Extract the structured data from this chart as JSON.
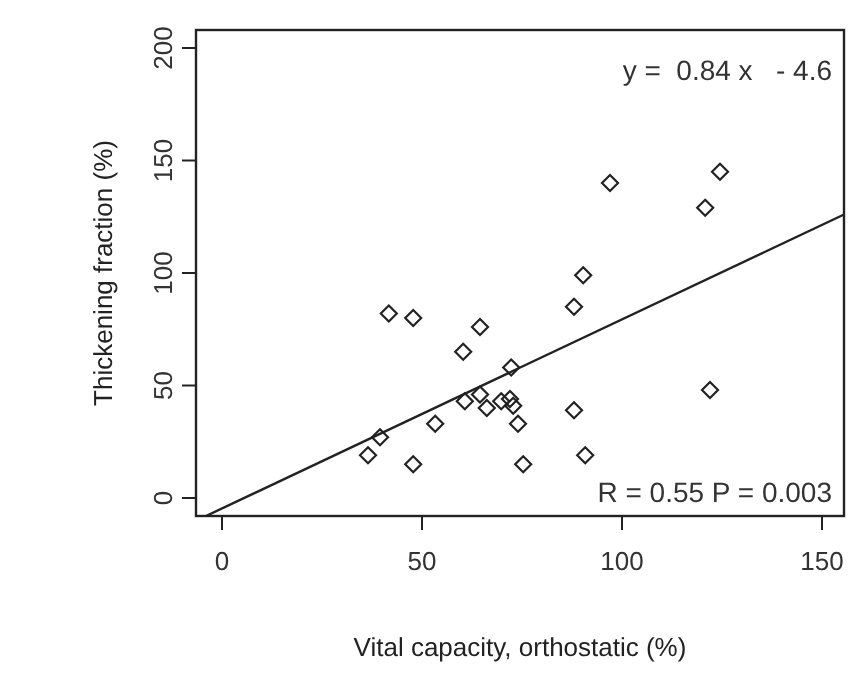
{
  "chart_data": {
    "type": "scatter",
    "xlabel": "Vital capacity, orthostatic  (%)",
    "ylabel": "Thickening fraction (%)",
    "xlim": [
      -6.5,
      155.5
    ],
    "ylim": [
      -8,
      208
    ],
    "xticks": [
      0,
      50,
      100,
      150
    ],
    "yticks": [
      0,
      50,
      100,
      150,
      200
    ],
    "grid": false,
    "annotations": [
      "y =  0.84 x   - 4.6",
      "R = 0.55 P = 0.003"
    ],
    "series": [
      {
        "marker": "diamond",
        "color": "#222222",
        "x": [
          41.7,
          47.8,
          64.5,
          60.3,
          72.3,
          60.7,
          64.5,
          66.2,
          69.8,
          72,
          72.8,
          74,
          53.3,
          39.5,
          36.5,
          47.8,
          75.3,
          88,
          90.8,
          88,
          90.3,
          97,
          120.8,
          124.5,
          122
        ],
        "values": [
          82,
          80,
          76,
          65,
          58,
          43,
          46,
          40,
          43,
          44,
          41,
          33,
          33,
          27,
          19,
          15,
          15,
          39,
          19,
          85,
          99,
          140,
          129,
          145,
          48
        ]
      },
      {
        "type": "line",
        "color": "#222222",
        "x": [
          -4,
          155.5
        ],
        "values": [
          -8,
          126
        ]
      }
    ]
  }
}
